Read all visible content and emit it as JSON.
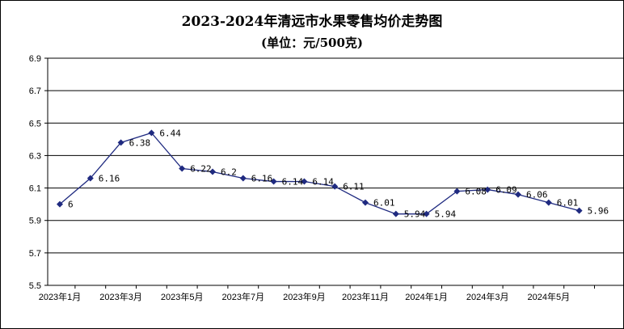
{
  "chart_data": {
    "type": "line",
    "title": "2023-2024年清远市水果零售均价走势图",
    "subtitle": "(单位：元/500克)",
    "xlabel": "",
    "ylabel": "",
    "ylim": [
      5.5,
      6.9
    ],
    "yticks": [
      "6.9",
      "6.7",
      "6.5",
      "6.3",
      "6.1",
      "5.9",
      "5.7",
      "5.5"
    ],
    "yticks_values": [
      6.9,
      6.7,
      6.5,
      6.3,
      6.1,
      5.9,
      5.7,
      5.5
    ],
    "xtick_labels": [
      "2023年1月",
      "2023年3月",
      "2023年5月",
      "2023年7月",
      "2023年9月",
      "2023年11月",
      "2024年1月",
      "2024年3月",
      "2024年5月"
    ],
    "grid": "horizontal",
    "legend": "none",
    "series_color": "#1f2a80",
    "marker": "diamond",
    "x": [
      "2023年1月",
      "2023年2月",
      "2023年3月",
      "2023年4月",
      "2023年5月",
      "2023年6月",
      "2023年7月",
      "2023年8月",
      "2023年9月",
      "2023年10月",
      "2023年11月",
      "2023年12月",
      "2024年1月",
      "2024年2月",
      "2024年3月",
      "2024年4月",
      "2024年5月",
      "2024年6月"
    ],
    "values": [
      6,
      6.16,
      6.38,
      6.44,
      6.22,
      6.2,
      6.16,
      6.14,
      6.14,
      6.11,
      6.01,
      5.94,
      5.94,
      6.08,
      6.09,
      6.06,
      6.01,
      5.96
    ],
    "data_labels": [
      "6",
      "",
      "6.38",
      "6.44",
      "6.22",
      "6.2",
      "6.16",
      "6.14",
      "6.14",
      "6.11",
      "6.01",
      "5.94",
      "5.94",
      "6.08",
      "6.09",
      "6.06",
      "6.01",
      "5.96"
    ],
    "extra_labels": [
      {
        "text": "6.16",
        "after_index": 1
      }
    ]
  }
}
